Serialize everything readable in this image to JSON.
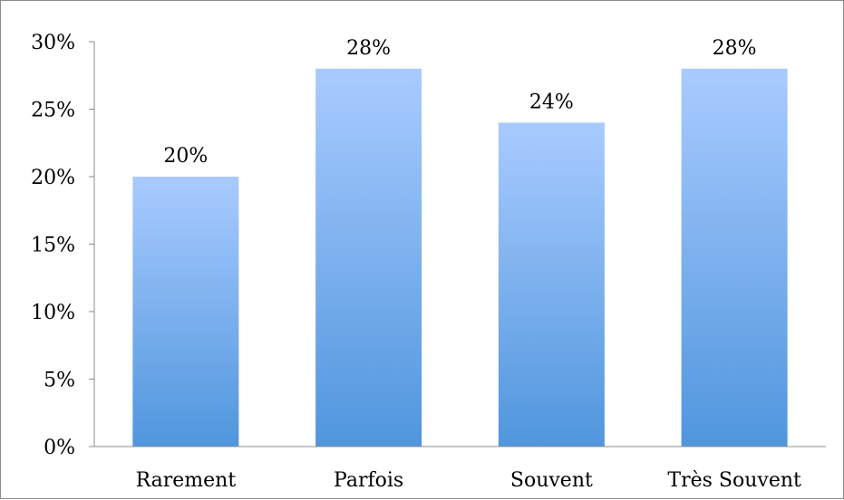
{
  "chart_data": {
    "type": "bar",
    "categories": [
      "Rarement",
      "Parfois",
      "Souvent",
      "Très Souvent"
    ],
    "values": [
      20,
      28,
      24,
      28
    ],
    "data_labels": [
      "20%",
      "28%",
      "24%",
      "28%"
    ],
    "title": "",
    "xlabel": "",
    "ylabel": "",
    "ylim": [
      0,
      30
    ],
    "yticks": [
      0,
      5,
      10,
      15,
      20,
      25,
      30
    ],
    "ytick_labels": [
      "0%",
      "5%",
      "10%",
      "15%",
      "20%",
      "25%",
      "30%"
    ],
    "grid": false,
    "legend": "none",
    "bar_color_top": "#a9cbff",
    "bar_color_bottom": "#5096dd"
  }
}
